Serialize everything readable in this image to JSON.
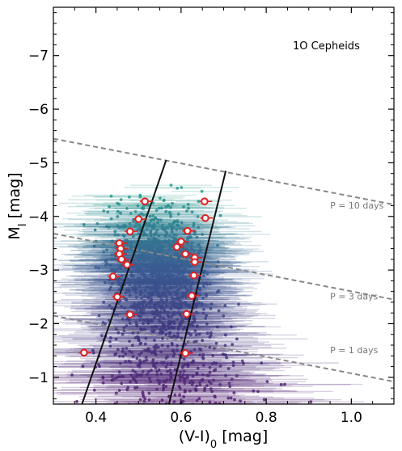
{
  "chart_data": {
    "type": "scatter",
    "title": "",
    "annotation": "1O Cepheids",
    "xlabel_main": "(V-I)",
    "xlabel_sub": "0",
    "xlabel_unit": "[mag]",
    "ylabel_main": "M",
    "ylabel_sub": "I",
    "ylabel_unit": "[mag]",
    "xlim": [
      0.3,
      1.1
    ],
    "ylim": [
      -0.5,
      -7.9
    ],
    "y_inverted": true,
    "xticks": [
      0.4,
      0.6,
      0.8,
      1.0
    ],
    "xtick_labels": [
      "0.4",
      "0.6",
      "0.8",
      "1.0"
    ],
    "yticks": [
      -1,
      -2,
      -3,
      -4,
      -5,
      -6,
      -7
    ],
    "ytick_labels": [
      "−1",
      "−2",
      "−3",
      "−4",
      "−5",
      "−6",
      "−7"
    ],
    "grid": false,
    "colors": {
      "teal": "#2a9d8f",
      "blue": "#3b5b92",
      "indigo": "#41377f",
      "purple": "#5a2475",
      "marker_edge": "#e02020",
      "period_line": "#888888",
      "strip_line": "#111111"
    },
    "instability_strip": [
      {
        "name": "blue-edge",
        "points": [
          [
            0.365,
            -0.45
          ],
          [
            0.565,
            -5.05
          ]
        ]
      },
      {
        "name": "red-edge",
        "points": [
          [
            0.57,
            -0.45
          ],
          [
            0.705,
            -4.85
          ]
        ]
      }
    ],
    "period_lines": [
      {
        "label": "P = 1 days",
        "points": [
          [
            0.3,
            -2.15
          ],
          [
            1.1,
            -0.92
          ]
        ],
        "label_pos": [
          0.95,
          -1.45
        ]
      },
      {
        "label": "P = 3 days",
        "points": [
          [
            0.3,
            -3.68
          ],
          [
            1.1,
            -2.45
          ]
        ],
        "label_pos": [
          0.95,
          -2.45
        ]
      },
      {
        "label": "P = 10 days",
        "points": [
          [
            0.3,
            -5.45
          ],
          [
            1.1,
            -4.22
          ]
        ],
        "label_pos": [
          0.95,
          -4.15
        ]
      }
    ],
    "highlighted_points": [
      {
        "x": 0.515,
        "y": -4.28
      },
      {
        "x": 0.5,
        "y": -3.95
      },
      {
        "x": 0.48,
        "y": -3.72
      },
      {
        "x": 0.455,
        "y": -3.5
      },
      {
        "x": 0.458,
        "y": -3.4
      },
      {
        "x": 0.455,
        "y": -3.3
      },
      {
        "x": 0.46,
        "y": -3.2
      },
      {
        "x": 0.473,
        "y": -3.1
      },
      {
        "x": 0.44,
        "y": -2.88
      },
      {
        "x": 0.45,
        "y": -2.5
      },
      {
        "x": 0.48,
        "y": -2.17
      },
      {
        "x": 0.372,
        "y": -1.46
      },
      {
        "x": 0.655,
        "y": -4.28
      },
      {
        "x": 0.657,
        "y": -3.97
      },
      {
        "x": 0.615,
        "y": -3.73
      },
      {
        "x": 0.6,
        "y": -3.53
      },
      {
        "x": 0.59,
        "y": -3.43
      },
      {
        "x": 0.61,
        "y": -3.3
      },
      {
        "x": 0.632,
        "y": -3.23
      },
      {
        "x": 0.632,
        "y": -3.15
      },
      {
        "x": 0.63,
        "y": -2.9
      },
      {
        "x": 0.625,
        "y": -2.52
      },
      {
        "x": 0.613,
        "y": -2.18
      },
      {
        "x": 0.61,
        "y": -1.45
      }
    ]
  }
}
